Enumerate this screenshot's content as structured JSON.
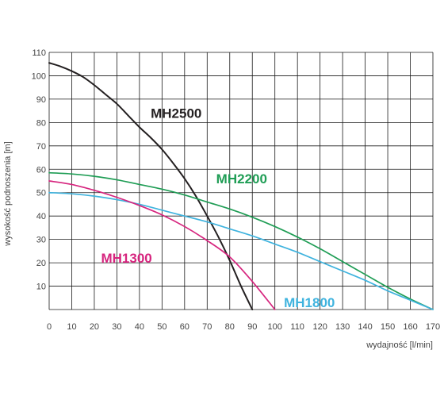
{
  "chart_data": {
    "type": "line",
    "xlabel": "wydajność [l/min]",
    "ylabel": "wysokość podnoszenia [m]",
    "xlim": [
      0,
      170
    ],
    "ylim": [
      0,
      110
    ],
    "x_ticks": [
      0,
      10,
      20,
      30,
      40,
      50,
      60,
      70,
      80,
      90,
      100,
      110,
      120,
      130,
      140,
      150,
      160,
      170
    ],
    "y_ticks": [
      10,
      20,
      30,
      40,
      50,
      60,
      70,
      80,
      90,
      100,
      110
    ],
    "grid": true,
    "series": [
      {
        "name": "MH2500",
        "color": "#231f20",
        "x": [
          0,
          5,
          10,
          15,
          20,
          25,
          30,
          35,
          40,
          45,
          50,
          55,
          60,
          65,
          70,
          75,
          80,
          85,
          90
        ],
        "y": [
          105.5,
          104,
          102,
          99.5,
          96,
          92,
          88,
          83,
          78,
          73.5,
          68.5,
          62.5,
          56,
          48.5,
          40,
          31,
          21,
          10,
          0
        ]
      },
      {
        "name": "MH2200",
        "color": "#1f9d55",
        "x": [
          0,
          10,
          20,
          30,
          40,
          50,
          60,
          70,
          80,
          90,
          100,
          110,
          120,
          130,
          140,
          150,
          160,
          170
        ],
        "y": [
          58.5,
          58,
          57,
          55.5,
          53.5,
          51.5,
          49,
          46,
          43,
          39.5,
          35.5,
          31,
          26,
          20.5,
          15,
          9.5,
          4.5,
          0
        ]
      },
      {
        "name": "MH1800",
        "color": "#3fb3de",
        "x": [
          0,
          10,
          20,
          30,
          40,
          50,
          60,
          70,
          80,
          90,
          100,
          110,
          120,
          130,
          140,
          150,
          160,
          170
        ],
        "y": [
          50,
          49.5,
          48.5,
          47,
          45,
          42.5,
          40,
          37.5,
          34.5,
          31.5,
          28,
          24.5,
          20.5,
          16.5,
          12.5,
          8,
          4,
          0
        ]
      },
      {
        "name": "MH1300",
        "color": "#d6247e",
        "x": [
          0,
          10,
          20,
          30,
          40,
          50,
          60,
          70,
          80,
          90,
          100
        ],
        "y": [
          55,
          53.5,
          51,
          48,
          44.5,
          40.5,
          35.5,
          29.5,
          22.5,
          12,
          0
        ]
      }
    ],
    "labels": [
      {
        "text": "MH2500",
        "color": "#231f20",
        "x": 45,
        "y": 82
      },
      {
        "text": "MH2200",
        "color": "#1f9d55",
        "x": 74,
        "y": 54
      },
      {
        "text": "MH1300",
        "color": "#d6247e",
        "x": 23,
        "y": 20
      },
      {
        "text": "MH1800",
        "color": "#3fb3de",
        "x": 104,
        "y": 1
      }
    ]
  }
}
